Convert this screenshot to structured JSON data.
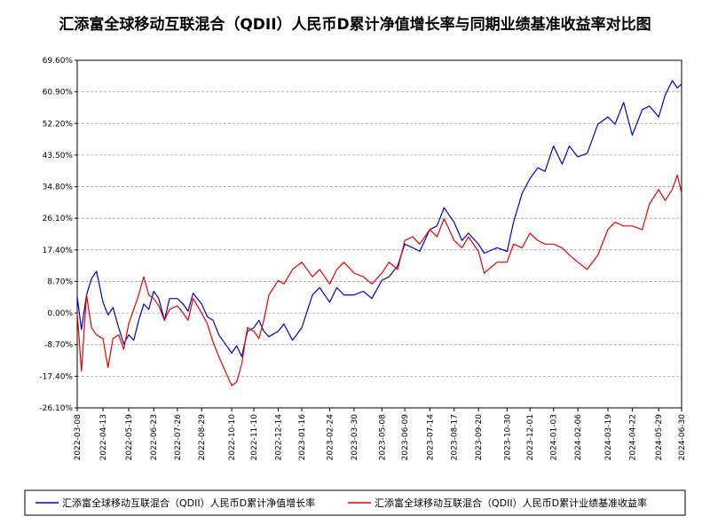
{
  "chart_data": {
    "type": "line",
    "title": "汇添富全球移动互联混合（QDII）人民币D累计净值增长率与同期业绩基准收益率对比图",
    "xlabel": "",
    "ylabel": "",
    "y_ticks": [
      "69.60%",
      "60.90%",
      "52.20%",
      "43.50%",
      "34.80%",
      "26.10%",
      "17.40%",
      "8.70%",
      "0.00%",
      "-8.70%",
      "-17.40%",
      "-26.10%"
    ],
    "ylim": [
      -26.1,
      69.6
    ],
    "x_ticks": [
      "2022-03-08",
      "2022-04-13",
      "2022-05-19",
      "2022-06-23",
      "2022-07-26",
      "2022-08-29",
      "2022-10-10",
      "2022-11-10",
      "2022-12-14",
      "2023-01-16",
      "2023-02-24",
      "2023-03-30",
      "2023-05-08",
      "2023-06-09",
      "2023-07-14",
      "2023-08-17",
      "2023-09-20",
      "2023-10-30",
      "2023-12-01",
      "2024-01-03",
      "2024-02-06",
      "2024-03-19",
      "2024-04-22",
      "2024-05-29",
      "2024-06-30"
    ],
    "grid": true,
    "legend_position": "bottom",
    "colors": {
      "fund": "#0000cc",
      "benchmark": "#e60000"
    },
    "series": [
      {
        "name": "汇添富全球移动互联混合（QDII）人民币D累计净值增长率",
        "color": "#0000cc",
        "x": [
          "2022-03-08",
          "2022-03-14",
          "2022-03-21",
          "2022-03-28",
          "2022-04-04",
          "2022-04-13",
          "2022-04-20",
          "2022-04-27",
          "2022-05-05",
          "2022-05-12",
          "2022-05-19",
          "2022-05-26",
          "2022-06-02",
          "2022-06-09",
          "2022-06-16",
          "2022-06-23",
          "2022-06-30",
          "2022-07-08",
          "2022-07-15",
          "2022-07-26",
          "2022-08-03",
          "2022-08-10",
          "2022-08-17",
          "2022-08-29",
          "2022-09-06",
          "2022-09-14",
          "2022-09-22",
          "2022-10-10",
          "2022-10-17",
          "2022-10-24",
          "2022-11-01",
          "2022-11-10",
          "2022-11-17",
          "2022-11-24",
          "2022-12-01",
          "2022-12-14",
          "2022-12-22",
          "2023-01-03",
          "2023-01-16",
          "2023-01-31",
          "2023-02-10",
          "2023-02-24",
          "2023-03-06",
          "2023-03-16",
          "2023-03-30",
          "2023-04-12",
          "2023-04-24",
          "2023-05-08",
          "2023-05-18",
          "2023-05-30",
          "2023-06-09",
          "2023-06-20",
          "2023-06-30",
          "2023-07-14",
          "2023-07-24",
          "2023-08-03",
          "2023-08-17",
          "2023-08-28",
          "2023-09-06",
          "2023-09-20",
          "2023-09-28",
          "2023-10-16",
          "2023-10-30",
          "2023-11-08",
          "2023-11-20",
          "2023-12-01",
          "2023-12-12",
          "2023-12-22",
          "2024-01-03",
          "2024-01-15",
          "2024-01-25",
          "2024-02-06",
          "2024-02-19",
          "2024-03-05",
          "2024-03-19",
          "2024-03-29",
          "2024-04-10",
          "2024-04-22",
          "2024-05-06",
          "2024-05-16",
          "2024-05-29",
          "2024-06-07",
          "2024-06-17",
          "2024-06-24",
          "2024-06-30"
        ],
        "values": [
          4.5,
          -4.5,
          5,
          9.5,
          11.5,
          3,
          -0.5,
          1.5,
          -4,
          -8.5,
          -6,
          -7.5,
          -2,
          2.5,
          1,
          6,
          4,
          -2,
          4,
          4,
          2.5,
          0.5,
          5.5,
          2.5,
          -1,
          -2,
          -6,
          -11,
          -9,
          -12,
          -5,
          -4,
          -2,
          -5,
          -6.5,
          -5,
          -3,
          -7.5,
          -4,
          5,
          7,
          3,
          7,
          5,
          5,
          6,
          4,
          9,
          10,
          13,
          19,
          18,
          17,
          23,
          24,
          29,
          25,
          20,
          22,
          19,
          16.5,
          18,
          17,
          25,
          33,
          37,
          40,
          39,
          46,
          41,
          46,
          43,
          44,
          52,
          54,
          52,
          58,
          49,
          56,
          57,
          54,
          60,
          64,
          62,
          63
        ]
      },
      {
        "name": "汇添富全球移动互联混合（QDII）人民币D累计业绩基准收益率",
        "color": "#e60000",
        "x": [
          "2022-03-08",
          "2022-03-14",
          "2022-03-21",
          "2022-03-28",
          "2022-04-04",
          "2022-04-13",
          "2022-04-20",
          "2022-04-27",
          "2022-05-05",
          "2022-05-12",
          "2022-05-19",
          "2022-05-26",
          "2022-06-02",
          "2022-06-09",
          "2022-06-16",
          "2022-06-23",
          "2022-06-30",
          "2022-07-08",
          "2022-07-15",
          "2022-07-26",
          "2022-08-03",
          "2022-08-10",
          "2022-08-17",
          "2022-08-29",
          "2022-09-06",
          "2022-09-14",
          "2022-09-22",
          "2022-10-10",
          "2022-10-17",
          "2022-10-24",
          "2022-11-01",
          "2022-11-10",
          "2022-11-17",
          "2022-11-24",
          "2022-12-01",
          "2022-12-14",
          "2022-12-22",
          "2023-01-03",
          "2023-01-16",
          "2023-01-31",
          "2023-02-10",
          "2023-02-24",
          "2023-03-06",
          "2023-03-16",
          "2023-03-30",
          "2023-04-12",
          "2023-04-24",
          "2023-05-08",
          "2023-05-18",
          "2023-05-30",
          "2023-06-09",
          "2023-06-20",
          "2023-06-30",
          "2023-07-14",
          "2023-07-24",
          "2023-08-03",
          "2023-08-17",
          "2023-08-28",
          "2023-09-06",
          "2023-09-20",
          "2023-09-28",
          "2023-10-16",
          "2023-10-30",
          "2023-11-08",
          "2023-11-20",
          "2023-12-01",
          "2023-12-12",
          "2023-12-22",
          "2024-01-03",
          "2024-01-15",
          "2024-01-25",
          "2024-02-06",
          "2024-02-19",
          "2024-03-05",
          "2024-03-19",
          "2024-03-29",
          "2024-04-10",
          "2024-04-22",
          "2024-05-06",
          "2024-05-16",
          "2024-05-29",
          "2024-06-07",
          "2024-06-17",
          "2024-06-24",
          "2024-06-30"
        ],
        "values": [
          0,
          -16,
          5,
          -4,
          -6,
          -7,
          -15,
          -7,
          -6,
          -10,
          -3,
          1,
          5,
          10,
          5,
          4,
          2,
          -2,
          1,
          2,
          0,
          -2,
          4,
          0,
          -3,
          -8,
          -12,
          -20,
          -19,
          -14,
          -4,
          -5,
          -7,
          -2,
          5,
          9,
          8,
          12,
          14,
          10,
          12,
          8,
          12,
          14,
          11,
          10,
          8,
          11,
          14,
          12,
          20,
          21,
          19,
          23,
          21,
          26,
          20,
          18,
          21,
          17,
          11,
          14,
          14,
          19,
          18,
          22,
          20,
          19,
          19,
          18,
          16,
          14,
          12,
          16,
          23,
          25,
          24,
          24,
          23,
          30,
          34,
          31,
          34,
          38,
          33
        ]
      }
    ]
  }
}
